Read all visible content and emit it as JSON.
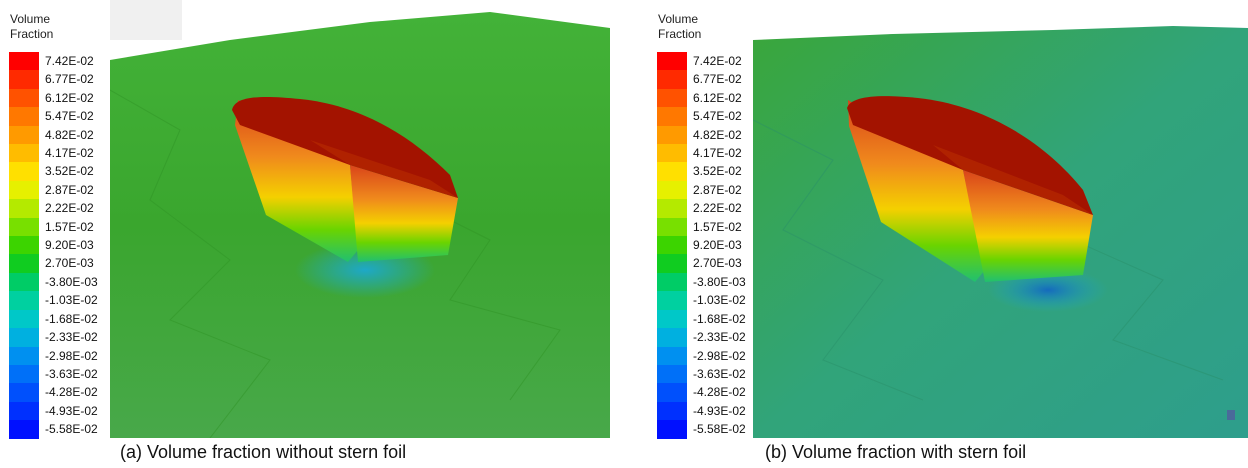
{
  "legend": {
    "title_line1": "Volume",
    "title_line2": "Fraction",
    "ticks": [
      "7.42E-02",
      "6.77E-02",
      "6.12E-02",
      "5.47E-02",
      "4.82E-02",
      "4.17E-02",
      "3.52E-02",
      "2.87E-02",
      "2.22E-02",
      "1.57E-02",
      "9.20E-03",
      "2.70E-03",
      "-3.80E-03",
      "-1.03E-02",
      "-1.68E-02",
      "-2.33E-02",
      "-2.98E-02",
      "-3.63E-02",
      "-4.28E-02",
      "-4.93E-02",
      "-5.58E-02"
    ],
    "colors": [
      "#ff0000",
      "#ff2a00",
      "#ff5200",
      "#ff7800",
      "#ff9a00",
      "#ffbc00",
      "#ffe000",
      "#e6f000",
      "#b4ea00",
      "#78e000",
      "#3cd400",
      "#10cc20",
      "#00cc66",
      "#00d0a0",
      "#00c8c8",
      "#00b0e0",
      "#0090f0",
      "#0070f8",
      "#0050fc",
      "#0030fe",
      "#0010ff"
    ]
  },
  "panels": {
    "a": {
      "caption": "(a) Volume fraction without stern foil"
    },
    "b": {
      "caption": "(b) Volume fraction with stern foil"
    }
  },
  "colors": {
    "water_a": "#3fae2f",
    "water_b": "#34a779",
    "hull_top": "#a00e00",
    "hull_side": "#e0521c"
  }
}
